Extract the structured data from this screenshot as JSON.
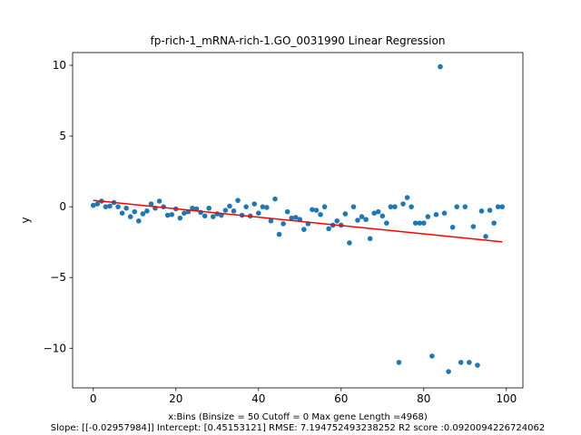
{
  "chart_data": {
    "type": "scatter",
    "title": "fp-rich-1_mRNA-rich-1.GO_0031990 Linear Regression",
    "xlabel_line1": "x:Bins  (Binsize = 50 Cutoff = 0 Max gene Length =4968)",
    "xlabel_line2": "Slope: [[-0.02957984]] Intercept: [0.45153121] RMSE: 7.194752493238252 R2 score :0.0920094226724062",
    "ylabel": "y",
    "xlim": [
      -5,
      104
    ],
    "ylim": [
      -12.8,
      10.9
    ],
    "x_ticks": [
      0,
      20,
      40,
      60,
      80,
      100
    ],
    "y_ticks": [
      -10,
      -5,
      0,
      5,
      10
    ],
    "grid": false,
    "point_color": "#1f77b4",
    "line_color": "#ff0000",
    "regression": {
      "slope": -0.02957984,
      "intercept": 0.45153121,
      "x_start": 0,
      "x_end": 99
    },
    "points": [
      [
        0,
        0.1
      ],
      [
        1,
        0.2
      ],
      [
        2,
        0.4
      ],
      [
        3,
        0.0
      ],
      [
        4,
        0.05
      ],
      [
        5,
        0.3
      ],
      [
        6,
        0.0
      ],
      [
        7,
        -0.45
      ],
      [
        8,
        -0.1
      ],
      [
        9,
        -0.7
      ],
      [
        10,
        -0.35
      ],
      [
        11,
        -1.0
      ],
      [
        12,
        -0.5
      ],
      [
        13,
        -0.3
      ],
      [
        14,
        0.2
      ],
      [
        15,
        -0.1
      ],
      [
        16,
        0.4
      ],
      [
        17,
        0.0
      ],
      [
        18,
        -0.6
      ],
      [
        19,
        -0.55
      ],
      [
        20,
        -0.15
      ],
      [
        21,
        -0.8
      ],
      [
        22,
        -0.45
      ],
      [
        23,
        -0.35
      ],
      [
        24,
        -0.1
      ],
      [
        25,
        -0.15
      ],
      [
        26,
        -0.4
      ],
      [
        27,
        -0.65
      ],
      [
        28,
        -0.1
      ],
      [
        29,
        -0.7
      ],
      [
        30,
        -0.5
      ],
      [
        31,
        -0.6
      ],
      [
        32,
        -0.25
      ],
      [
        33,
        0.05
      ],
      [
        34,
        -0.3
      ],
      [
        35,
        0.45
      ],
      [
        36,
        -0.6
      ],
      [
        37,
        0.0
      ],
      [
        38,
        -0.65
      ],
      [
        39,
        0.2
      ],
      [
        40,
        -0.45
      ],
      [
        41,
        0.0
      ],
      [
        42,
        -0.05
      ],
      [
        43,
        -1.0
      ],
      [
        44,
        0.55
      ],
      [
        45,
        -1.95
      ],
      [
        46,
        -1.2
      ],
      [
        47,
        -0.35
      ],
      [
        48,
        -0.8
      ],
      [
        49,
        -0.75
      ],
      [
        50,
        -0.9
      ],
      [
        51,
        -1.6
      ],
      [
        52,
        -1.2
      ],
      [
        53,
        -0.2
      ],
      [
        54,
        -0.25
      ],
      [
        55,
        -0.55
      ],
      [
        56,
        0.0
      ],
      [
        57,
        -1.55
      ],
      [
        58,
        -1.3
      ],
      [
        59,
        -1.0
      ],
      [
        60,
        -1.3
      ],
      [
        61,
        -0.5
      ],
      [
        62,
        -2.55
      ],
      [
        63,
        0.0
      ],
      [
        64,
        -0.95
      ],
      [
        65,
        -0.7
      ],
      [
        66,
        -0.9
      ],
      [
        67,
        -2.25
      ],
      [
        68,
        -0.45
      ],
      [
        69,
        -0.35
      ],
      [
        70,
        -0.65
      ],
      [
        71,
        -1.15
      ],
      [
        72,
        0.0
      ],
      [
        73,
        0.0
      ],
      [
        74,
        -11.0
      ],
      [
        75,
        0.2
      ],
      [
        76,
        0.65
      ],
      [
        77,
        0.0
      ],
      [
        78,
        -1.15
      ],
      [
        79,
        -1.15
      ],
      [
        80,
        -1.15
      ],
      [
        81,
        -0.7
      ],
      [
        82,
        -10.55
      ],
      [
        83,
        -0.55
      ],
      [
        84,
        9.9
      ],
      [
        85,
        -0.45
      ],
      [
        86,
        -11.65
      ],
      [
        87,
        -1.45
      ],
      [
        88,
        0.0
      ],
      [
        89,
        -11.0
      ],
      [
        90,
        0.0
      ],
      [
        91,
        -11.0
      ],
      [
        92,
        -1.4
      ],
      [
        93,
        -11.2
      ],
      [
        94,
        -0.3
      ],
      [
        95,
        -2.1
      ],
      [
        96,
        -0.25
      ],
      [
        97,
        -1.15
      ],
      [
        98,
        0.0
      ],
      [
        99,
        0.0
      ]
    ]
  }
}
